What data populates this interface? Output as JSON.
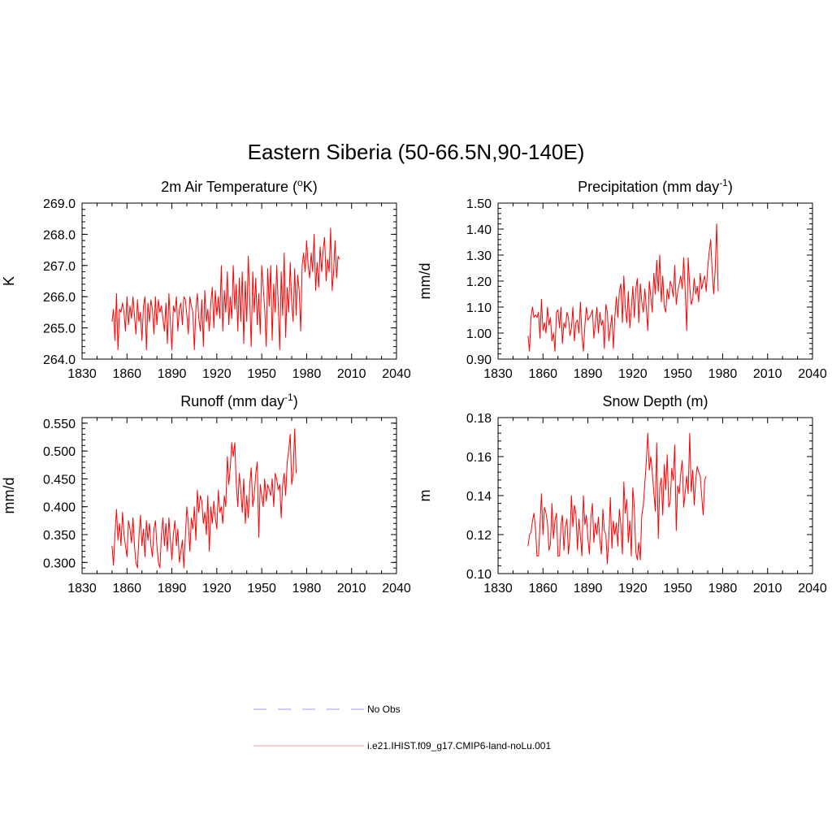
{
  "figure": {
    "title": "Eastern Siberia (50-66.5N,90-140E)"
  },
  "legend": [
    {
      "label": "No Obs",
      "color": "#9999ff",
      "dash": "dashed"
    },
    {
      "label": "i.e21.IHIST.f09_g17.CMIP6-land-noLu.001",
      "color": "#ff0000",
      "dash": "solid"
    }
  ],
  "chart_data": [
    {
      "type": "line",
      "title": "2m Air Temperature (°K)",
      "title_parts": [
        "2m Air Temperature (",
        "o",
        "K)"
      ],
      "xlabel": "",
      "ylabel": "K",
      "xlim": [
        1830,
        2040
      ],
      "xticks": [
        1830,
        1860,
        1890,
        1920,
        1950,
        1980,
        2010,
        2040
      ],
      "ylim": [
        264.0,
        269.0
      ],
      "yticks": [
        "264.0",
        "265.0",
        "266.0",
        "267.0",
        "268.0",
        "269.0"
      ],
      "color": "#ff0000",
      "x_start": 1850,
      "values": [
        265.2,
        265.6,
        264.6,
        266.1,
        264.3,
        265.6,
        265.5,
        265.8,
        265.5,
        264.9,
        266.0,
        265.1,
        265.7,
        265.3,
        266.0,
        265.4,
        264.8,
        265.9,
        265.2,
        265.5,
        264.6,
        265.7,
        266.0,
        264.3,
        265.8,
        265.2,
        265.9,
        265.6,
        264.8,
        266.0,
        265.1,
        265.9,
        265.5,
        265.7,
        265.3,
        264.9,
        265.8,
        264.5,
        266.1,
        265.2,
        264.3,
        265.7,
        265.5,
        266.0,
        264.9,
        265.6,
        265.8,
        265.1,
        266.0,
        265.9,
        265.4,
        264.8,
        266.0,
        265.7,
        265.5,
        264.3,
        265.6,
        266.1,
        265.3,
        264.9,
        265.9,
        264.4,
        266.2,
        265.2,
        265.6,
        264.9,
        265.8,
        266.3,
        265.0,
        266.2,
        265.4,
        266.0,
        265.3,
        267.0,
        264.9,
        266.2,
        265.5,
        266.8,
        265.1,
        266.0,
        265.3,
        267.0,
        265.6,
        266.4,
        264.9,
        266.6,
        265.2,
        266.8,
        264.5,
        266.5,
        265.2,
        267.3,
        265.9,
        264.4,
        266.8,
        265.5,
        266.6,
        265.1,
        266.1,
        264.8,
        267.0,
        266.3,
        265.6,
        264.4,
        266.9,
        265.7,
        267.0,
        264.6,
        266.4,
        265.5,
        267.0,
        265.8,
        264.3,
        266.8,
        265.4,
        267.4,
        264.7,
        266.3,
        265.5,
        267.1,
        265.8,
        265.2,
        266.9,
        265.4,
        266.7,
        266.2,
        264.9,
        267.0,
        267.4,
        266.8,
        267.8,
        267.0,
        266.6,
        267.4,
        266.8,
        268.0,
        266.2,
        267.1,
        266.3,
        267.6,
        266.8,
        267.5,
        267.9,
        266.5,
        267.2,
        266.8,
        268.2,
        266.2,
        266.8,
        267.8,
        266.6,
        267.3,
        267.2
      ],
      "name_grid": "on"
    },
    {
      "type": "line",
      "title": "Precipitation (mm day-1)",
      "title_parts": [
        "Precipitation (mm day",
        "-1",
        ")"
      ],
      "xlabel": "",
      "ylabel": "mm/d",
      "xlim": [
        1830,
        2040
      ],
      "xticks": [
        1830,
        1860,
        1890,
        1920,
        1950,
        1980,
        2010,
        2040
      ],
      "ylim": [
        0.9,
        1.5
      ],
      "yticks": [
        "0.90",
        "1.00",
        "1.10",
        "1.20",
        "1.30",
        "1.40",
        "1.50"
      ],
      "color": "#ff0000",
      "x_start": 1850,
      "values": [
        0.99,
        0.93,
        1.06,
        1.1,
        1.06,
        1.07,
        1.06,
        1.08,
        0.98,
        1.13,
        1.01,
        1.04,
        1.0,
        1.1,
        1.03,
        1.06,
        0.97,
        1.0,
        0.93,
        1.08,
        1.09,
        1.02,
        1.1,
        0.96,
        1.04,
        1.02,
        1.08,
        1.06,
        0.99,
        1.02,
        1.1,
        0.97,
        1.04,
        1.05,
        1.0,
        1.12,
        0.99,
        0.93,
        1.03,
        1.1,
        1.05,
        1.06,
        1.07,
        1.09,
        0.98,
        1.04,
        1.1,
        1.0,
        1.08,
        1.03,
        1.05,
        0.94,
        1.11,
        1.08,
        0.97,
        1.02,
        1.07,
        0.94,
        1.06,
        1.14,
        1.06,
        1.16,
        1.19,
        1.04,
        1.22,
        1.1,
        1.04,
        1.16,
        1.02,
        1.09,
        1.18,
        1.06,
        1.17,
        1.21,
        1.04,
        1.19,
        1.12,
        1.08,
        1.17,
        1.1,
        1.01,
        1.2,
        1.14,
        1.08,
        1.23,
        1.15,
        1.28,
        1.16,
        1.3,
        1.12,
        1.22,
        1.1,
        1.08,
        1.17,
        1.13,
        1.2,
        1.18,
        1.14,
        1.26,
        1.11,
        1.16,
        1.19,
        1.22,
        1.17,
        1.29,
        1.16,
        1.01,
        1.29,
        1.18,
        1.11,
        1.13,
        1.21,
        1.15,
        1.18,
        1.12,
        1.23,
        1.17,
        1.2,
        1.22,
        1.16,
        1.25,
        1.31,
        1.36,
        1.24,
        1.15,
        1.24,
        1.42,
        1.16
      ]
    },
    {
      "type": "line",
      "title": "Runoff (mm day-1)",
      "title_parts": [
        "Runoff (mm day",
        "-1",
        ")"
      ],
      "xlabel": "",
      "ylabel": "mm/d",
      "xlim": [
        1830,
        2040
      ],
      "xticks": [
        1830,
        1860,
        1890,
        1920,
        1950,
        1980,
        2010,
        2040
      ],
      "ylim": [
        0.28,
        0.56
      ],
      "yticks": [
        "0.300",
        "0.350",
        "0.400",
        "0.450",
        "0.500",
        "0.550"
      ],
      "color": "#ff0000",
      "x_start": 1850,
      "values": [
        0.33,
        0.295,
        0.35,
        0.395,
        0.34,
        0.37,
        0.33,
        0.39,
        0.35,
        0.33,
        0.31,
        0.375,
        0.36,
        0.335,
        0.38,
        0.33,
        0.3,
        0.29,
        0.345,
        0.385,
        0.33,
        0.36,
        0.31,
        0.375,
        0.34,
        0.37,
        0.33,
        0.31,
        0.36,
        0.375,
        0.33,
        0.3,
        0.29,
        0.35,
        0.38,
        0.33,
        0.37,
        0.32,
        0.38,
        0.34,
        0.305,
        0.35,
        0.375,
        0.33,
        0.36,
        0.3,
        0.32,
        0.34,
        0.29,
        0.35,
        0.4,
        0.37,
        0.32,
        0.38,
        0.36,
        0.4,
        0.34,
        0.43,
        0.39,
        0.42,
        0.41,
        0.37,
        0.39,
        0.35,
        0.42,
        0.32,
        0.4,
        0.37,
        0.41,
        0.38,
        0.36,
        0.43,
        0.39,
        0.4,
        0.37,
        0.42,
        0.4,
        0.49,
        0.44,
        0.47,
        0.515,
        0.49,
        0.515,
        0.44,
        0.4,
        0.46,
        0.43,
        0.39,
        0.45,
        0.37,
        0.42,
        0.38,
        0.44,
        0.47,
        0.4,
        0.42,
        0.46,
        0.48,
        0.345,
        0.44,
        0.42,
        0.4,
        0.45,
        0.41,
        0.44,
        0.43,
        0.42,
        0.45,
        0.4,
        0.46,
        0.45,
        0.43,
        0.44,
        0.38,
        0.44,
        0.46,
        0.42,
        0.48,
        0.5,
        0.53,
        0.44,
        0.46,
        0.54,
        0.46
      ]
    },
    {
      "type": "line",
      "title": "Snow Depth (m)",
      "title_parts": [
        "Snow Depth (m)",
        "",
        ""
      ],
      "xlabel": "",
      "ylabel": "m",
      "xlim": [
        1830,
        2040
      ],
      "xticks": [
        1830,
        1860,
        1890,
        1920,
        1950,
        1980,
        2010,
        2040
      ],
      "ylim": [
        0.1,
        0.18
      ],
      "yticks": [
        "0.10",
        "0.12",
        "0.14",
        "0.16",
        "0.18"
      ],
      "color": "#ff0000",
      "x_start": 1850,
      "values": [
        0.114,
        0.12,
        0.121,
        0.127,
        0.131,
        0.123,
        0.109,
        0.109,
        0.125,
        0.141,
        0.12,
        0.134,
        0.131,
        0.126,
        0.112,
        0.115,
        0.136,
        0.118,
        0.127,
        0.131,
        0.109,
        0.109,
        0.125,
        0.13,
        0.112,
        0.124,
        0.128,
        0.11,
        0.119,
        0.14,
        0.124,
        0.135,
        0.131,
        0.112,
        0.128,
        0.119,
        0.109,
        0.14,
        0.125,
        0.13,
        0.118,
        0.11,
        0.129,
        0.136,
        0.116,
        0.126,
        0.12,
        0.129,
        0.117,
        0.11,
        0.133,
        0.122,
        0.12,
        0.105,
        0.119,
        0.139,
        0.113,
        0.127,
        0.12,
        0.126,
        0.114,
        0.133,
        0.125,
        0.11,
        0.147,
        0.131,
        0.138,
        0.116,
        0.127,
        0.109,
        0.144,
        0.134,
        0.111,
        0.107,
        0.116,
        0.107,
        0.13,
        0.135,
        0.146,
        0.157,
        0.172,
        0.153,
        0.16,
        0.152,
        0.142,
        0.132,
        0.167,
        0.118,
        0.144,
        0.149,
        0.13,
        0.156,
        0.143,
        0.161,
        0.134,
        0.137,
        0.154,
        0.148,
        0.166,
        0.122,
        0.145,
        0.141,
        0.151,
        0.158,
        0.134,
        0.142,
        0.15,
        0.141,
        0.172,
        0.142,
        0.153,
        0.135,
        0.148,
        0.155,
        0.152,
        0.15,
        0.14,
        0.13,
        0.148,
        0.15
      ]
    }
  ]
}
